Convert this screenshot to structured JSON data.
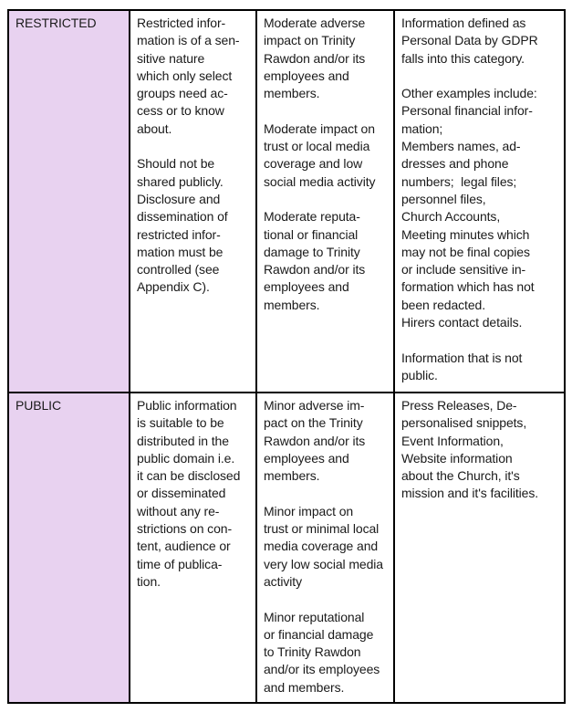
{
  "colors": {
    "label_bg": "#e8d2f0",
    "border": "#000000",
    "text": "#1a1a1a"
  },
  "table": {
    "rows": [
      {
        "classification": "RESTRICTED",
        "definition": "Restricted infor-\nmation is of a sen-\nsitive nature\nwhich only select\ngroups need ac-\ncess or to know\nabout.\n\nShould not be\nshared publicly.\nDisclosure and\ndissemination of\nrestricted infor-\nmation must be\ncontrolled (see\nAppendix C).",
        "impact": "Moderate adverse\nimpact on Trinity\nRawdon and/or its\nemployees and\nmembers.\n\nModerate impact on\ntrust or local media\ncoverage and low\nsocial media activity\n\nModerate reputa-\ntional or financial\ndamage to Trinity\nRawdon and/or its\nemployees and\nmembers.",
        "examples": "Information defined as\nPersonal Data by GDPR\nfalls into this category.\n\nOther examples include:\nPersonal financial infor-\nmation;\nMembers names, ad-\ndresses and phone\nnumbers;  legal files;\npersonnel files,\nChurch Accounts,\nMeeting minutes which\nmay not be final copies\nor include sensitive in-\nformation which has not\nbeen redacted.\nHirers contact details.\n\nInformation that is not\npublic."
      },
      {
        "classification": "PUBLIC",
        "definition": "Public information\nis suitable to be\ndistributed in the\npublic domain i.e.\nit can be disclosed\nor disseminated\nwithout any re-\nstrictions on con-\ntent, audience or\ntime of publica-\ntion.",
        "impact": "Minor adverse im-\npact on the Trinity\nRawdon and/or its\nemployees and\nmembers.\n\nMinor impact on\ntrust or minimal local\nmedia coverage and\nvery low social media\nactivity\n\nMinor reputational\nor financial damage\nto Trinity Rawdon\nand/or its employees\nand members.",
        "examples": "Press Releases, De-\npersonalised snippets,\nEvent Information,\nWebsite information\nabout the Church, it's\nmission and it's facilities."
      }
    ]
  }
}
